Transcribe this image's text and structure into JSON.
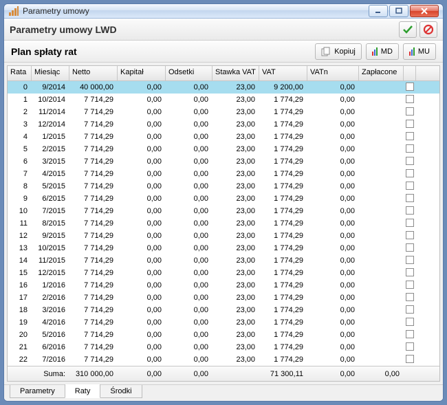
{
  "window": {
    "title": "Parametry umowy",
    "header_title": "Parametry umowy LWD"
  },
  "plan": {
    "title": "Plan spłaty rat",
    "btn_copy": "Kopiuj",
    "btn_md": "MD",
    "btn_mu": "MU"
  },
  "columns": {
    "rata": "Rata",
    "miesiac": "Miesiąc",
    "netto": "Netto",
    "kapital": "Kapitał",
    "odsetki": "Odsetki",
    "stawka_vat": "Stawka VAT",
    "vat": "VAT",
    "vatn": "VATn",
    "zaplacone": "Zapłacone"
  },
  "rows": [
    {
      "rata": "0",
      "miesiac": "9/2014",
      "netto": "40 000,00",
      "kapital": "0,00",
      "odsetki": "0,00",
      "stawka": "23,00",
      "vat": "9 200,00",
      "vatn": "0,00"
    },
    {
      "rata": "1",
      "miesiac": "10/2014",
      "netto": "7 714,29",
      "kapital": "0,00",
      "odsetki": "0,00",
      "stawka": "23,00",
      "vat": "1 774,29",
      "vatn": "0,00"
    },
    {
      "rata": "2",
      "miesiac": "11/2014",
      "netto": "7 714,29",
      "kapital": "0,00",
      "odsetki": "0,00",
      "stawka": "23,00",
      "vat": "1 774,29",
      "vatn": "0,00"
    },
    {
      "rata": "3",
      "miesiac": "12/2014",
      "netto": "7 714,29",
      "kapital": "0,00",
      "odsetki": "0,00",
      "stawka": "23,00",
      "vat": "1 774,29",
      "vatn": "0,00"
    },
    {
      "rata": "4",
      "miesiac": "1/2015",
      "netto": "7 714,29",
      "kapital": "0,00",
      "odsetki": "0,00",
      "stawka": "23,00",
      "vat": "1 774,29",
      "vatn": "0,00"
    },
    {
      "rata": "5",
      "miesiac": "2/2015",
      "netto": "7 714,29",
      "kapital": "0,00",
      "odsetki": "0,00",
      "stawka": "23,00",
      "vat": "1 774,29",
      "vatn": "0,00"
    },
    {
      "rata": "6",
      "miesiac": "3/2015",
      "netto": "7 714,29",
      "kapital": "0,00",
      "odsetki": "0,00",
      "stawka": "23,00",
      "vat": "1 774,29",
      "vatn": "0,00"
    },
    {
      "rata": "7",
      "miesiac": "4/2015",
      "netto": "7 714,29",
      "kapital": "0,00",
      "odsetki": "0,00",
      "stawka": "23,00",
      "vat": "1 774,29",
      "vatn": "0,00"
    },
    {
      "rata": "8",
      "miesiac": "5/2015",
      "netto": "7 714,29",
      "kapital": "0,00",
      "odsetki": "0,00",
      "stawka": "23,00",
      "vat": "1 774,29",
      "vatn": "0,00"
    },
    {
      "rata": "9",
      "miesiac": "6/2015",
      "netto": "7 714,29",
      "kapital": "0,00",
      "odsetki": "0,00",
      "stawka": "23,00",
      "vat": "1 774,29",
      "vatn": "0,00"
    },
    {
      "rata": "10",
      "miesiac": "7/2015",
      "netto": "7 714,29",
      "kapital": "0,00",
      "odsetki": "0,00",
      "stawka": "23,00",
      "vat": "1 774,29",
      "vatn": "0,00"
    },
    {
      "rata": "11",
      "miesiac": "8/2015",
      "netto": "7 714,29",
      "kapital": "0,00",
      "odsetki": "0,00",
      "stawka": "23,00",
      "vat": "1 774,29",
      "vatn": "0,00"
    },
    {
      "rata": "12",
      "miesiac": "9/2015",
      "netto": "7 714,29",
      "kapital": "0,00",
      "odsetki": "0,00",
      "stawka": "23,00",
      "vat": "1 774,29",
      "vatn": "0,00"
    },
    {
      "rata": "13",
      "miesiac": "10/2015",
      "netto": "7 714,29",
      "kapital": "0,00",
      "odsetki": "0,00",
      "stawka": "23,00",
      "vat": "1 774,29",
      "vatn": "0,00"
    },
    {
      "rata": "14",
      "miesiac": "11/2015",
      "netto": "7 714,29",
      "kapital": "0,00",
      "odsetki": "0,00",
      "stawka": "23,00",
      "vat": "1 774,29",
      "vatn": "0,00"
    },
    {
      "rata": "15",
      "miesiac": "12/2015",
      "netto": "7 714,29",
      "kapital": "0,00",
      "odsetki": "0,00",
      "stawka": "23,00",
      "vat": "1 774,29",
      "vatn": "0,00"
    },
    {
      "rata": "16",
      "miesiac": "1/2016",
      "netto": "7 714,29",
      "kapital": "0,00",
      "odsetki": "0,00",
      "stawka": "23,00",
      "vat": "1 774,29",
      "vatn": "0,00"
    },
    {
      "rata": "17",
      "miesiac": "2/2016",
      "netto": "7 714,29",
      "kapital": "0,00",
      "odsetki": "0,00",
      "stawka": "23,00",
      "vat": "1 774,29",
      "vatn": "0,00"
    },
    {
      "rata": "18",
      "miesiac": "3/2016",
      "netto": "7 714,29",
      "kapital": "0,00",
      "odsetki": "0,00",
      "stawka": "23,00",
      "vat": "1 774,29",
      "vatn": "0,00"
    },
    {
      "rata": "19",
      "miesiac": "4/2016",
      "netto": "7 714,29",
      "kapital": "0,00",
      "odsetki": "0,00",
      "stawka": "23,00",
      "vat": "1 774,29",
      "vatn": "0,00"
    },
    {
      "rata": "20",
      "miesiac": "5/2016",
      "netto": "7 714,29",
      "kapital": "0,00",
      "odsetki": "0,00",
      "stawka": "23,00",
      "vat": "1 774,29",
      "vatn": "0,00"
    },
    {
      "rata": "21",
      "miesiac": "6/2016",
      "netto": "7 714,29",
      "kapital": "0,00",
      "odsetki": "0,00",
      "stawka": "23,00",
      "vat": "1 774,29",
      "vatn": "0,00"
    },
    {
      "rata": "22",
      "miesiac": "7/2016",
      "netto": "7 714,29",
      "kapital": "0,00",
      "odsetki": "0,00",
      "stawka": "23,00",
      "vat": "1 774,29",
      "vatn": "0,00"
    }
  ],
  "sum": {
    "label": "Suma:",
    "netto": "310 000,00",
    "kapital": "0,00",
    "odsetki": "0,00",
    "vat": "71 300,11",
    "vatn": "0,00",
    "zapl": "0,00"
  },
  "tabs": {
    "parametry": "Parametry",
    "raty": "Raty",
    "srodki": "Środki"
  },
  "style": {
    "sel_row_bg": "#a6ddef",
    "window_border": "#5a7aa8"
  }
}
